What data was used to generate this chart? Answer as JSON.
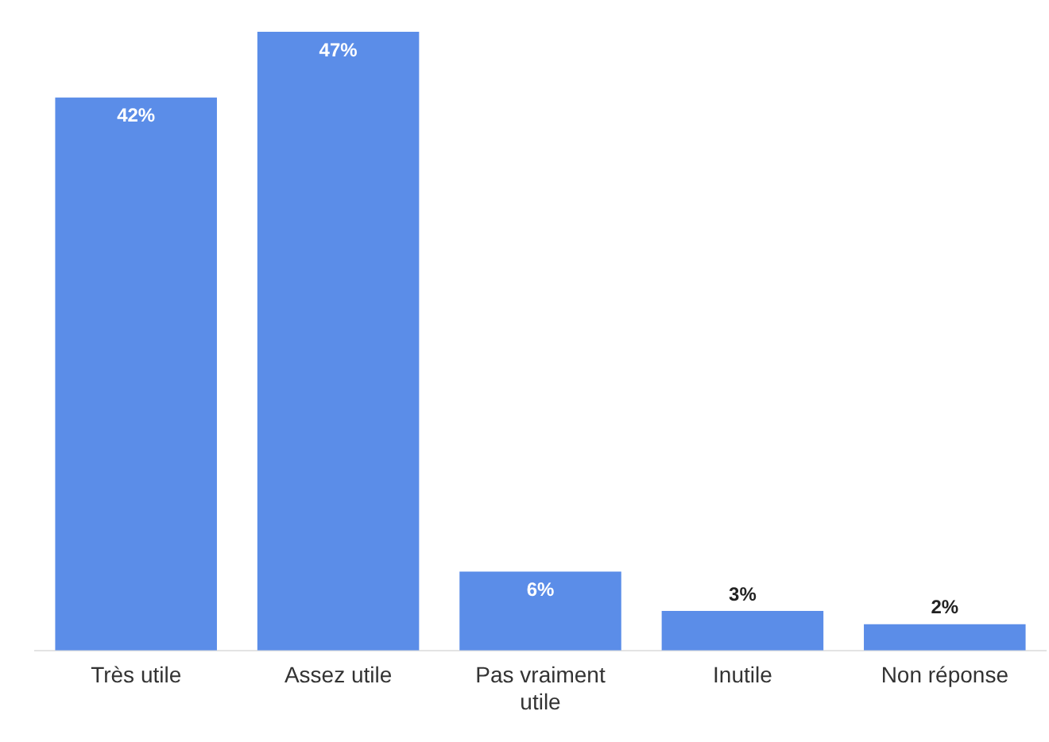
{
  "chart_data": {
    "type": "bar",
    "categories": [
      "Très utile",
      "Assez utile",
      "Pas vraiment utile",
      "Inutile",
      "Non réponse"
    ],
    "values": [
      42,
      47,
      6,
      3,
      2
    ],
    "color": "#5b8de8",
    "value_labels": [
      "42%",
      "47%",
      "6%",
      "3%",
      "2%"
    ],
    "grid": false,
    "legend": false
  }
}
